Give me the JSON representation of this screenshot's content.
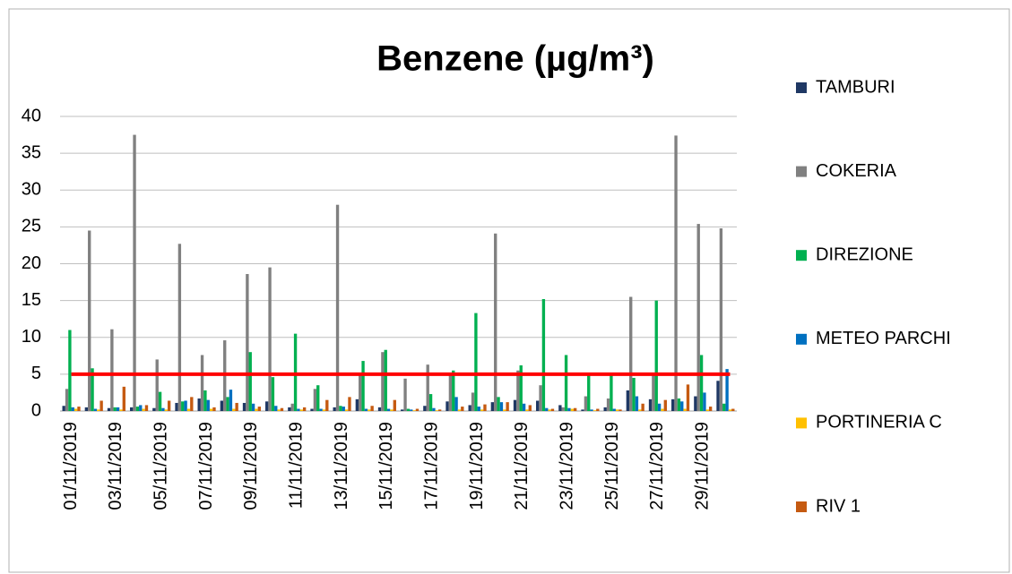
{
  "chart_data": {
    "type": "bar",
    "title": "Benzene (µg/m³)",
    "categories": [
      "01/11/2019",
      null,
      "03/11/2019",
      null,
      "05/11/2019",
      null,
      "07/11/2019",
      null,
      "09/11/2019",
      null,
      "11/11/2019",
      null,
      "13/11/2019",
      null,
      "15/11/2019",
      null,
      "17/11/2019",
      null,
      "19/11/2019",
      null,
      "21/11/2019",
      null,
      "23/11/2019",
      null,
      "25/11/2019",
      null,
      "27/11/2019",
      null,
      "29/11/2019",
      null
    ],
    "series": [
      {
        "name": "TAMBURI",
        "color": "#1f3864",
        "values": [
          0.7,
          0.5,
          0.4,
          0.5,
          0.4,
          1.1,
          1.7,
          1.4,
          1.1,
          1.3,
          0.5,
          0.3,
          0.5,
          1.6,
          0.5,
          0.2,
          0.7,
          1.3,
          0.8,
          1.2,
          1.5,
          1.4,
          0.8,
          0.2,
          0.5,
          2.8,
          1.6,
          1.6,
          2.0,
          4.1
        ]
      },
      {
        "name": "COKERIA",
        "color": "#808080",
        "values": [
          3.0,
          24.5,
          11.1,
          37.5,
          7.0,
          22.7,
          7.6,
          9.6,
          18.6,
          19.5,
          1.0,
          3.0,
          28.0,
          4.8,
          8.0,
          4.4,
          6.3,
          5.2,
          2.5,
          24.1,
          5.5,
          3.5,
          0.5,
          2.0,
          1.7,
          15.5,
          5.0,
          37.4,
          25.4,
          24.8
        ]
      },
      {
        "name": "DIREZIONE",
        "color": "#00b050",
        "values": [
          11.0,
          5.8,
          0.5,
          0.6,
          2.6,
          1.3,
          2.8,
          1.9,
          8.0,
          4.6,
          10.5,
          3.5,
          0.7,
          6.8,
          8.3,
          0.3,
          2.3,
          5.5,
          13.3,
          1.9,
          6.2,
          15.2,
          7.6,
          5.0,
          5.0,
          4.5,
          15.0,
          1.7,
          7.6,
          1.0
        ]
      },
      {
        "name": "METEO PARCHI",
        "color": "#0070c0",
        "values": [
          0.5,
          0.3,
          0.5,
          0.8,
          0.4,
          1.4,
          1.5,
          2.9,
          1.0,
          0.7,
          0.3,
          0.3,
          0.6,
          0.3,
          0.3,
          0.2,
          0.4,
          1.9,
          0.6,
          1.2,
          1.0,
          0.4,
          0.4,
          0.2,
          0.3,
          2.0,
          1.0,
          1.3,
          2.5,
          5.7
        ]
      },
      {
        "name": "PORTINERIA C",
        "color": "#ffc000",
        "values": [
          0.3,
          0.2,
          0.2,
          0.3,
          0.2,
          0.3,
          0.3,
          0.3,
          0.3,
          0.2,
          0.2,
          0.2,
          0.2,
          0.2,
          0.2,
          0.1,
          0.1,
          0.2,
          0.2,
          0.2,
          0.2,
          0.2,
          0.3,
          0.1,
          0.2,
          0.2,
          0.3,
          0.3,
          0.2,
          0.2
        ]
      },
      {
        "name": "RIV 1",
        "color": "#c55a11",
        "values": [
          0.6,
          1.4,
          3.3,
          0.8,
          1.4,
          1.9,
          0.5,
          1.1,
          0.6,
          0.4,
          0.5,
          1.5,
          1.9,
          0.7,
          1.5,
          0.3,
          0.2,
          0.6,
          0.9,
          1.2,
          0.8,
          0.3,
          0.4,
          0.3,
          0.2,
          1.0,
          1.5,
          3.6,
          0.6,
          0.3
        ]
      }
    ],
    "ylim": [
      0,
      40
    ],
    "yticks": [
      0,
      5,
      10,
      15,
      20,
      25,
      30,
      35,
      40
    ],
    "grid": true,
    "threshold": 5,
    "threshold_color": "#ff0000",
    "legend": "right"
  }
}
